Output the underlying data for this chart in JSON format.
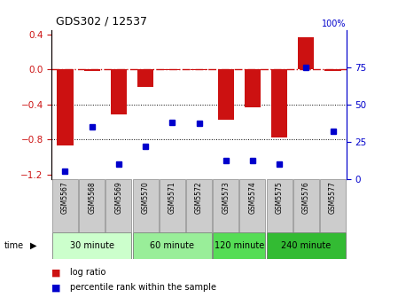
{
  "title": "GDS302 / 12537",
  "samples": [
    "GSM5567",
    "GSM5568",
    "GSM5569",
    "GSM5570",
    "GSM5571",
    "GSM5572",
    "GSM5573",
    "GSM5574",
    "GSM5575",
    "GSM5576",
    "GSM5577"
  ],
  "log_ratio": [
    -0.87,
    -0.02,
    -0.52,
    -0.2,
    -0.01,
    -0.01,
    -0.58,
    -0.43,
    -0.78,
    0.36,
    -0.02
  ],
  "percentile": [
    5,
    35,
    10,
    22,
    38,
    37,
    12,
    12,
    10,
    75,
    32
  ],
  "groups": [
    {
      "label": "30 minute",
      "samples": [
        0,
        1,
        2
      ],
      "color": "#ccffcc"
    },
    {
      "label": "60 minute",
      "samples": [
        3,
        4,
        5
      ],
      "color": "#99ee99"
    },
    {
      "label": "120 minute",
      "samples": [
        6,
        7
      ],
      "color": "#55dd55"
    },
    {
      "label": "240 minute",
      "samples": [
        8,
        9,
        10
      ],
      "color": "#33bb33"
    }
  ],
  "ylim_left": [
    -1.25,
    0.45
  ],
  "ylim_right": [
    0,
    100
  ],
  "bar_color": "#cc1111",
  "dot_color": "#0000cc",
  "dashed_color": "#cc1111",
  "grid_color": "#000000",
  "sample_bg_color": "#cccccc",
  "sample_border_color": "#888888",
  "left_yticks": [
    -1.2,
    -0.8,
    -0.4,
    0.0,
    0.4
  ],
  "right_yticks": [
    0,
    25,
    50,
    75
  ],
  "bar_width": 0.6,
  "dot_size": 5
}
